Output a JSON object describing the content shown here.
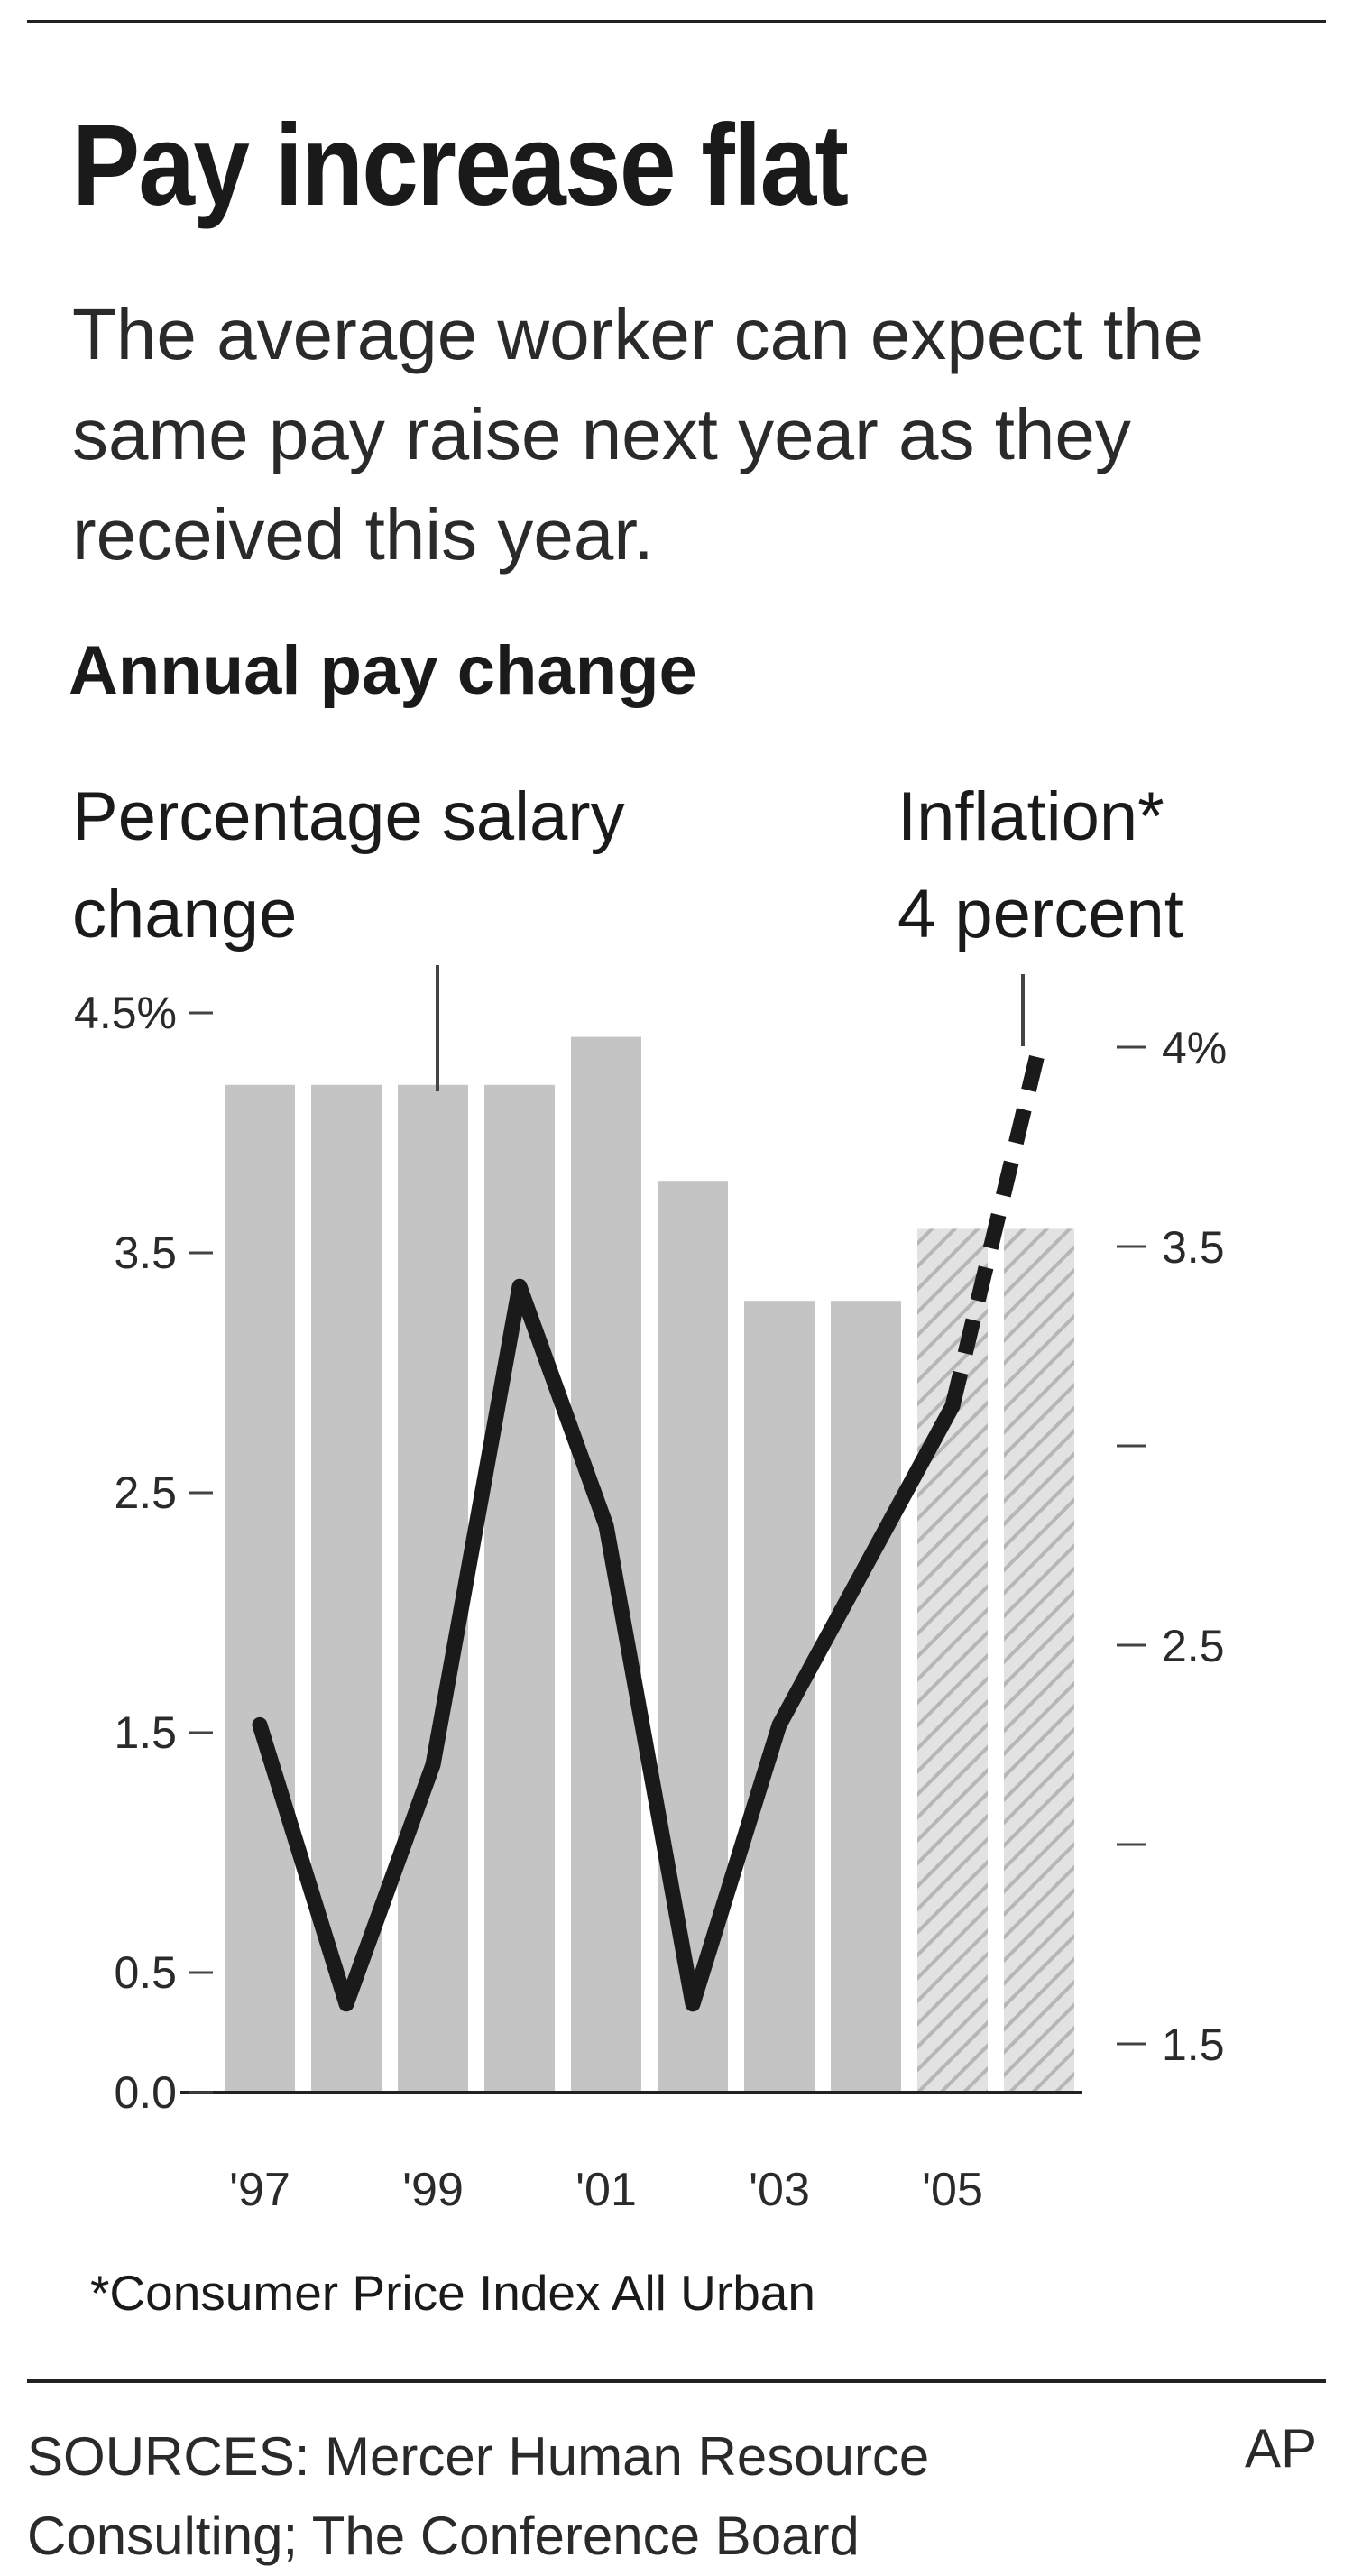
{
  "title": "Pay increase flat",
  "subtitle": "The average worker can expect the same pay raise next year as they received this year.",
  "footnote": "*Consumer Price Index All Urban",
  "sources": "SOURCES: Mercer Human Resource Consulting; The Conference Board",
  "credit": "AP",
  "colors": {
    "bars": "#c4c4c4",
    "line": "#1a1a1a",
    "text": "#1a1a1a",
    "rules": "#222222"
  },
  "chart_data": {
    "type": "bar",
    "title": "Annual pay change",
    "categories": [
      "1997",
      "1998",
      "1999",
      "2000",
      "2001",
      "2002",
      "2003",
      "2004",
      "2005",
      "2006"
    ],
    "x_tick_labels": [
      "'97",
      "'99",
      "'01",
      "'03",
      "'05"
    ],
    "x_tick_categories": [
      "1997",
      "1999",
      "2001",
      "2003",
      "2005"
    ],
    "series": [
      {
        "name": "Percentage salary change",
        "axis": "left",
        "values": [
          4.2,
          4.2,
          4.2,
          4.2,
          4.4,
          3.8,
          3.3,
          3.3,
          3.6,
          3.6
        ],
        "hatched_categories": [
          "2005",
          "2006"
        ]
      },
      {
        "name": "Inflation*",
        "axis": "right",
        "type": "line",
        "values": [
          2.3,
          1.6,
          2.2,
          3.4,
          2.8,
          1.6,
          2.3,
          2.7,
          3.1,
          4.0
        ],
        "dashed_categories": [
          "2005",
          "2006"
        ]
      }
    ],
    "left_axis": {
      "ticks": [
        0.0,
        0.5,
        1.5,
        2.5,
        3.5,
        4.5
      ],
      "tick_labels": [
        "0.0",
        "0.5",
        "1.5",
        "2.5",
        "3.5",
        "4.5%"
      ]
    },
    "right_axis": {
      "ticks": [
        1.5,
        2.0,
        2.5,
        3.0,
        3.5,
        4.0
      ],
      "tick_labels": [
        "1.5",
        "",
        "2.5",
        "",
        "3.5",
        "4%"
      ]
    },
    "annotations": {
      "salary_label": "Percentage salary change",
      "inflation_label": "Inflation*\n4 percent"
    },
    "grid": false,
    "legend": "none"
  }
}
